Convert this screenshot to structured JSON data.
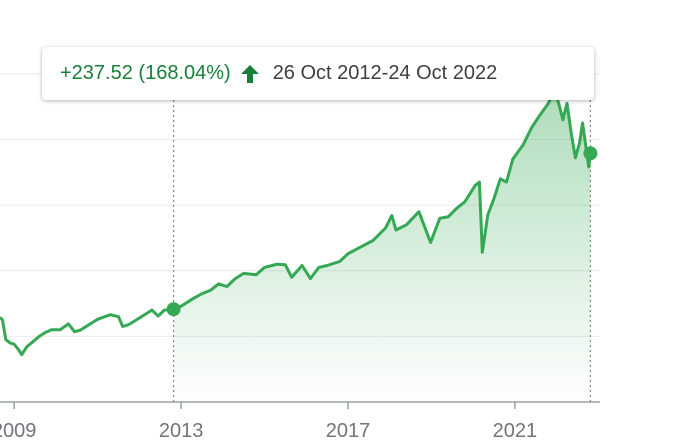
{
  "chart_data": {
    "type": "line",
    "x": [
      2008.66,
      2008.72,
      2008.8,
      2008.9,
      2009.0,
      2009.1,
      2009.18,
      2009.3,
      2009.45,
      2009.6,
      2009.75,
      2009.9,
      2010.1,
      2010.3,
      2010.45,
      2010.6,
      2010.8,
      2011.0,
      2011.3,
      2011.5,
      2011.6,
      2011.75,
      2011.9,
      2012.1,
      2012.3,
      2012.45,
      2012.6,
      2012.82,
      2013.0,
      2013.3,
      2013.5,
      2013.7,
      2013.9,
      2014.1,
      2014.3,
      2014.5,
      2014.8,
      2015.0,
      2015.3,
      2015.5,
      2015.65,
      2015.9,
      2016.1,
      2016.3,
      2016.5,
      2016.8,
      2017.0,
      2017.3,
      2017.6,
      2017.9,
      2018.05,
      2018.15,
      2018.4,
      2018.7,
      2018.98,
      2019.2,
      2019.4,
      2019.6,
      2019.8,
      2020.05,
      2020.15,
      2020.22,
      2020.35,
      2020.5,
      2020.65,
      2020.8,
      2020.95,
      2021.2,
      2021.4,
      2021.6,
      2021.8,
      2021.95,
      2022.05,
      2022.15,
      2022.25,
      2022.35,
      2022.45,
      2022.55,
      2022.62,
      2022.7,
      2022.77,
      2022.81
    ],
    "series": [
      {
        "color": "#34a853",
        "values": [
          129,
          125,
          95,
          90,
          88,
          80,
          72,
          84,
          92,
          100,
          106,
          110,
          110,
          119,
          107,
          110,
          118,
          126,
          133,
          130,
          115,
          118,
          124,
          132,
          140,
          131,
          140,
          141.35,
          146,
          158,
          165,
          170,
          180,
          176,
          188,
          196,
          194,
          205,
          210,
          209,
          190,
          208,
          188,
          205,
          208,
          214,
          226,
          236,
          246,
          265,
          284,
          262,
          270,
          290,
          243,
          280,
          282,
          295,
          305,
          330,
          335,
          228,
          285,
          310,
          340,
          335,
          370,
          392,
          418,
          437,
          455,
          475,
          455,
          430,
          455,
          410,
          372,
          395,
          425,
          390,
          358,
          378.87
        ]
      }
    ],
    "xlim": [
      2008.66,
      2023.04
    ],
    "ylim": [
      0,
      550
    ],
    "xticks": [
      2009,
      2013,
      2017,
      2021
    ],
    "yticks": [
      100,
      200,
      300,
      400,
      500
    ],
    "grid": true,
    "selection_xlim": [
      2012.82,
      2022.81
    ],
    "tooltip": {
      "change": "+237.52 (168.04%)",
      "range": "26 Oct 2012-24 Oct 2022"
    }
  }
}
